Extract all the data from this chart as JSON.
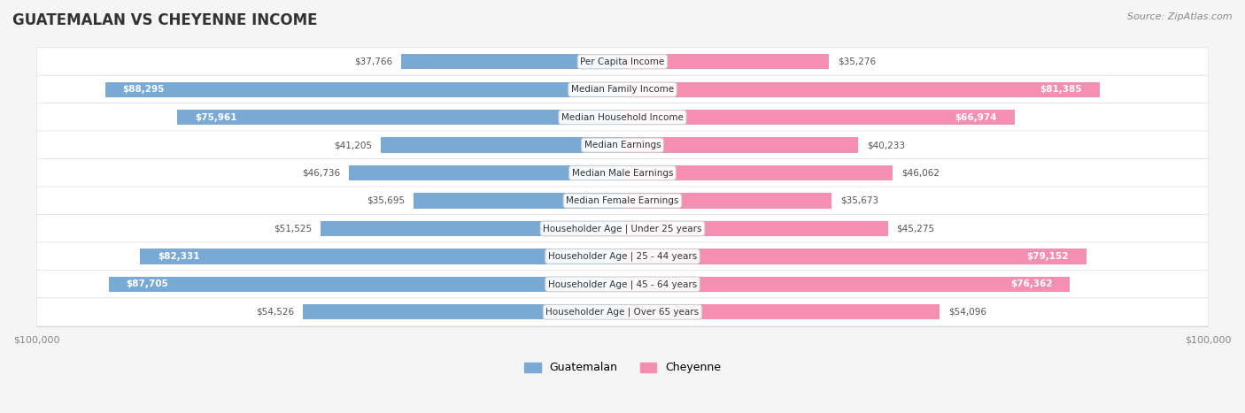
{
  "title": "GUATEMALAN VS CHEYENNE INCOME",
  "source": "Source: ZipAtlas.com",
  "categories": [
    "Per Capita Income",
    "Median Family Income",
    "Median Household Income",
    "Median Earnings",
    "Median Male Earnings",
    "Median Female Earnings",
    "Householder Age | Under 25 years",
    "Householder Age | 25 - 44 years",
    "Householder Age | 45 - 64 years",
    "Householder Age | Over 65 years"
  ],
  "guatemalan_values": [
    37766,
    88295,
    75961,
    41205,
    46736,
    35695,
    51525,
    82331,
    87705,
    54526
  ],
  "cheyenne_values": [
    35276,
    81385,
    66974,
    40233,
    46062,
    35673,
    45275,
    79152,
    76362,
    54096
  ],
  "max_value": 100000,
  "guatemalan_color": "#7aaad4",
  "guatemalan_color_dark": "#5b9bc8",
  "cheyenne_color": "#f48fb1",
  "cheyenne_color_dark": "#f06292",
  "guatemalan_label": "Guatemalan",
  "cheyenne_label": "Cheyenne",
  "bg_color": "#f5f5f5",
  "row_bg_color": "#ffffff",
  "label_bg_color": "#ffffff",
  "axis_label_color": "#888888",
  "title_color": "#333333",
  "source_color": "#888888"
}
